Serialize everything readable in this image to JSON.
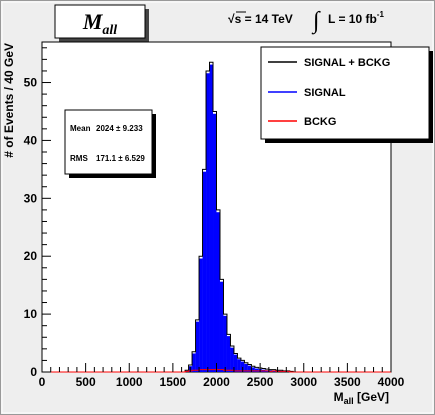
{
  "chart_data": {
    "type": "bar",
    "title": "M",
    "title_subscript": "all",
    "subtitle_parts": {
      "sqrt_sign": "√",
      "energy_label": "s = 14 TeV",
      "integral_sign": "∫",
      "lumi_label": "L = 10 fb",
      "lumi_exponent": "-1"
    },
    "xlabel_main": "M",
    "xlabel_sub": "all",
    "xlabel_unit": " [GeV]",
    "ylabel": "# of Events / 40 GeV",
    "xlim": [
      0,
      4000
    ],
    "ylim": [
      0,
      57
    ],
    "x_ticks": [
      "0",
      "500",
      "1000",
      "1500",
      "2000",
      "2500",
      "3000",
      "3500",
      "4000"
    ],
    "y_ticks": [
      "0",
      "10",
      "20",
      "30",
      "40",
      "50"
    ],
    "bin_width": 40,
    "bin_centers": [
      1660,
      1700,
      1740,
      1780,
      1820,
      1860,
      1900,
      1940,
      1980,
      2020,
      2060,
      2100,
      2140,
      2180,
      2220,
      2260,
      2300,
      2340,
      2380,
      2420,
      2460,
      2500,
      2540,
      2580,
      2620,
      2660,
      2700,
      2740,
      2780,
      2820,
      2860
    ],
    "series": [
      {
        "name": "SIGNAL + BCKG",
        "color": "#000000",
        "values": [
          0.3,
          1.2,
          3.5,
          9.0,
          20.0,
          35.0,
          52.0,
          53.5,
          45.0,
          28.0,
          16.0,
          10.0,
          6.5,
          4.5,
          3.2,
          2.4,
          2.0,
          1.6,
          1.3,
          1.0,
          0.8,
          0.7,
          0.6,
          0.5,
          0.4,
          0.4,
          0.3,
          0.3,
          0.2,
          0.2,
          0.1
        ]
      },
      {
        "name": "SIGNAL",
        "color": "#0000ff",
        "values": [
          0.2,
          1.0,
          3.2,
          8.7,
          19.6,
          34.6,
          51.6,
          53.1,
          44.6,
          27.6,
          15.6,
          9.7,
          6.2,
          4.2,
          3.0,
          2.2,
          1.8,
          1.4,
          1.1,
          0.8,
          0.6,
          0.5,
          0.4,
          0.3,
          0.3,
          0.2,
          0.2,
          0.2,
          0.1,
          0.1,
          0.1
        ]
      },
      {
        "name": "BCKG",
        "color": "#ff0000",
        "values": [
          0.1,
          0.2,
          0.3,
          0.3,
          0.4,
          0.4,
          0.4,
          0.4,
          0.4,
          0.4,
          0.4,
          0.3,
          0.3,
          0.3,
          0.2,
          0.2,
          0.2,
          0.2,
          0.2,
          0.2,
          0.2,
          0.2,
          0.2,
          0.2,
          0.1,
          0.2,
          0.1,
          0.1,
          0.1,
          0.1,
          0.0
        ]
      }
    ],
    "stats": {
      "mean_label": "Mean",
      "mean_value": "2024 ±  9.233",
      "rms_label": "RMS",
      "rms_value": "171.1 ±  6.529"
    },
    "legend_placement": "top-right",
    "grid": false
  }
}
